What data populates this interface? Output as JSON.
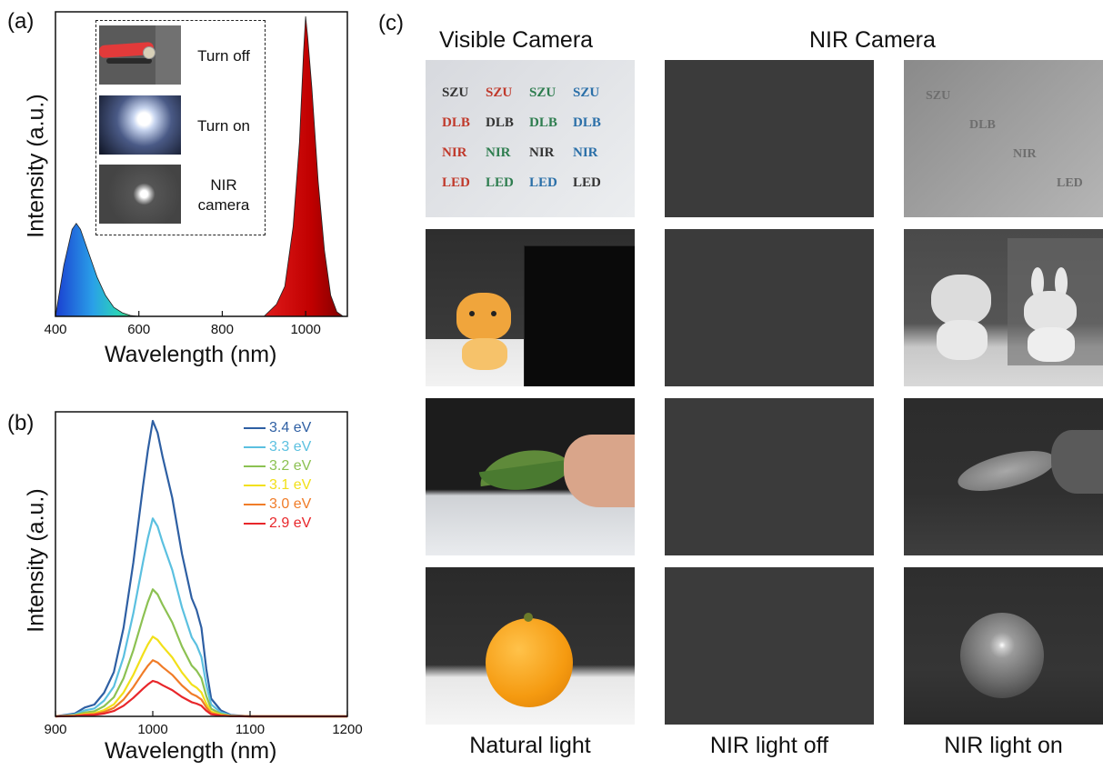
{
  "panel_labels": {
    "a": "(a)",
    "b": "(b)",
    "c": "(c)"
  },
  "panel_a": {
    "ylabel": "Intensity (a.u.)",
    "xlabel": "Wavelength (nm)",
    "x_ticks": [
      "400",
      "600",
      "800",
      "1000"
    ],
    "inset": [
      {
        "label": "Turn off"
      },
      {
        "label": "Turn on"
      },
      {
        "label": "NIR\ncamera"
      }
    ]
  },
  "panel_b": {
    "ylabel": "Intensity (a.u.)",
    "xlabel": "Wavelength (nm)",
    "x_ticks": [
      "900",
      "1000",
      "1100",
      "1200"
    ]
  },
  "panel_c": {
    "header_visible": "Visible Camera",
    "header_nir": "NIR Camera",
    "captions": [
      "Natural light",
      "NIR light off",
      "NIR light on"
    ],
    "label_grid": [
      [
        {
          "t": "SZU",
          "c": "#333333"
        },
        {
          "t": "SZU",
          "c": "#c0392b"
        },
        {
          "t": "SZU",
          "c": "#2e7d4f"
        },
        {
          "t": "SZU",
          "c": "#2a6fa8"
        }
      ],
      [
        {
          "t": "DLB",
          "c": "#c0392b"
        },
        {
          "t": "DLB",
          "c": "#333333"
        },
        {
          "t": "DLB",
          "c": "#2e7d4f"
        },
        {
          "t": "DLB",
          "c": "#2a6fa8"
        }
      ],
      [
        {
          "t": "NIR",
          "c": "#c0392b"
        },
        {
          "t": "NIR",
          "c": "#2e7d4f"
        },
        {
          "t": "NIR",
          "c": "#333333"
        },
        {
          "t": "NIR",
          "c": "#2a6fa8"
        }
      ],
      [
        {
          "t": "LED",
          "c": "#c0392b"
        },
        {
          "t": "LED",
          "c": "#2e7d4f"
        },
        {
          "t": "LED",
          "c": "#2a6fa8"
        },
        {
          "t": "LED",
          "c": "#333333"
        }
      ]
    ],
    "nir_labels": [
      "SZU",
      "DLB",
      "NIR",
      "LED"
    ]
  },
  "chart_data": [
    {
      "type": "area",
      "xlabel": "Wavelength (nm)",
      "ylabel": "Intensity (a.u.)",
      "xlim": [
        400,
        1100
      ],
      "ylim": [
        0,
        1
      ],
      "series": [
        {
          "x": [
            400,
            420,
            440,
            450,
            460,
            480,
            500,
            520,
            540,
            560,
            580,
            600
          ],
          "y": [
            0.0,
            0.17,
            0.29,
            0.31,
            0.29,
            0.21,
            0.13,
            0.07,
            0.03,
            0.012,
            0.003,
            0.0
          ]
        },
        {
          "x": [
            900,
            930,
            950,
            970,
            985,
            995,
            1000,
            1005,
            1015,
            1030,
            1045,
            1060,
            1075,
            1090
          ],
          "y": [
            0.0,
            0.04,
            0.1,
            0.3,
            0.58,
            0.88,
            1.0,
            0.93,
            0.76,
            0.45,
            0.22,
            0.07,
            0.015,
            0.0
          ]
        }
      ]
    },
    {
      "type": "line",
      "xlabel": "Wavelength (nm)",
      "ylabel": "Intensity (a.u.)",
      "xlim": [
        900,
        1200
      ],
      "ylim": [
        0,
        1
      ],
      "x": [
        900,
        920,
        930,
        940,
        950,
        960,
        970,
        980,
        990,
        995,
        1000,
        1005,
        1010,
        1020,
        1030,
        1040,
        1045,
        1050,
        1055,
        1060,
        1070,
        1080,
        1100,
        1200
      ],
      "shape": [
        0,
        0.01,
        0.03,
        0.04,
        0.08,
        0.15,
        0.3,
        0.52,
        0.78,
        0.9,
        1.0,
        0.96,
        0.88,
        0.74,
        0.55,
        0.4,
        0.36,
        0.3,
        0.16,
        0.06,
        0.02,
        0.005,
        0,
        0
      ],
      "series": [
        {
          "name": "3.4 eV",
          "color": "#2e5fa3",
          "scale": 1.0
        },
        {
          "name": "3.3 eV",
          "color": "#5bc0e0",
          "scale": 0.67
        },
        {
          "name": "3.2 eV",
          "color": "#8cc152",
          "scale": 0.43
        },
        {
          "name": "3.1 eV",
          "color": "#f2e01a",
          "scale": 0.27
        },
        {
          "name": "3.0 eV",
          "color": "#f07c28",
          "scale": 0.19
        },
        {
          "name": "2.9 eV",
          "color": "#e8262a",
          "scale": 0.12
        }
      ]
    }
  ]
}
